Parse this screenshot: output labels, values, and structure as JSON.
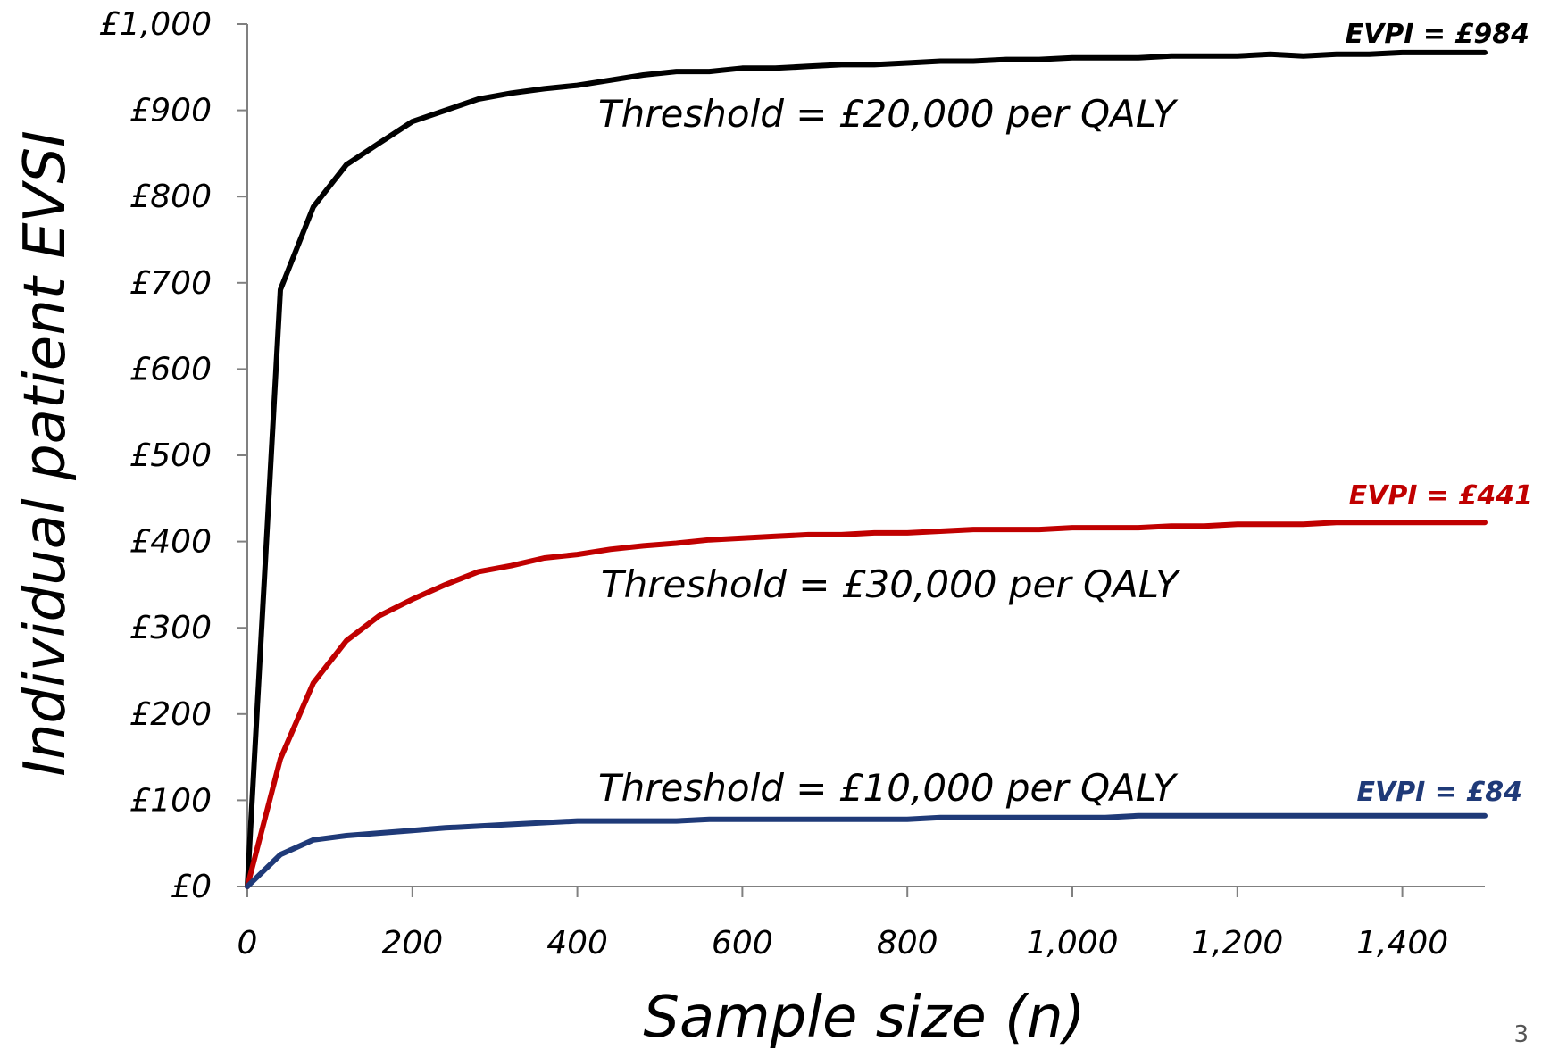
{
  "page_number": "3",
  "chart_data": {
    "type": "line",
    "xlabel": "Sample size (n)",
    "ylabel": "Individual patient EVSI",
    "xlim": [
      0,
      1500
    ],
    "ylim": [
      0,
      1000
    ],
    "x_ticks": [
      0,
      200,
      400,
      600,
      800,
      1000,
      1200,
      1400
    ],
    "x_tick_labels": [
      "0",
      "200",
      "400",
      "600",
      "800",
      "1,000",
      "1,200",
      "1,400"
    ],
    "y_ticks": [
      0,
      100,
      200,
      300,
      400,
      500,
      600,
      700,
      800,
      900,
      1000
    ],
    "y_tick_labels": [
      "£0",
      "£100",
      "£200",
      "£300",
      "£400",
      "£500",
      "£600",
      "£700",
      "£800",
      "£900",
      "£1,000"
    ],
    "grid": false,
    "x": [
      0,
      40,
      80,
      120,
      160,
      200,
      240,
      280,
      320,
      360,
      400,
      440,
      480,
      520,
      560,
      600,
      640,
      680,
      720,
      760,
      800,
      840,
      880,
      920,
      960,
      1000,
      1040,
      1080,
      1120,
      1160,
      1200,
      1240,
      1280,
      1320,
      1360,
      1400,
      1440,
      1500
    ],
    "series": [
      {
        "color": "#000000",
        "values": [
          0,
          692,
          788,
          837,
          862,
          887,
          900,
          913,
          920,
          925,
          929,
          935,
          941,
          945,
          945,
          949,
          949,
          951,
          953,
          953,
          955,
          957,
          957,
          959,
          959,
          961,
          961,
          961,
          963,
          963,
          963,
          965,
          963,
          965,
          965,
          967,
          967,
          967
        ]
      },
      {
        "color": "#c00000",
        "values": [
          0,
          148,
          236,
          285,
          314,
          333,
          350,
          365,
          372,
          381,
          385,
          391,
          395,
          398,
          402,
          404,
          406,
          408,
          408,
          410,
          410,
          412,
          414,
          414,
          414,
          416,
          416,
          416,
          418,
          418,
          420,
          420,
          420,
          422,
          422,
          422,
          422,
          422
        ]
      },
      {
        "color": "#1f3a78",
        "values": [
          0,
          37,
          54,
          59,
          62,
          65,
          68,
          70,
          72,
          74,
          76,
          76,
          76,
          76,
          78,
          78,
          78,
          78,
          78,
          78,
          78,
          80,
          80,
          80,
          80,
          80,
          80,
          82,
          82,
          82,
          82,
          82,
          82,
          82,
          82,
          82,
          82,
          82
        ]
      }
    ],
    "annotations": [
      {
        "text": "Threshold = £20,000 per QALY",
        "color": "#000000"
      },
      {
        "text": "Threshold = £30,000 per QALY",
        "color": "#000000"
      },
      {
        "text": "Threshold = £10,000 per QALY",
        "color": "#000000"
      },
      {
        "text": "EVPI = £984",
        "color": "#000000"
      },
      {
        "text": "EVPI = £441",
        "color": "#c00000"
      },
      {
        "text": "EVPI = £84",
        "color": "#1f3a78"
      }
    ]
  }
}
